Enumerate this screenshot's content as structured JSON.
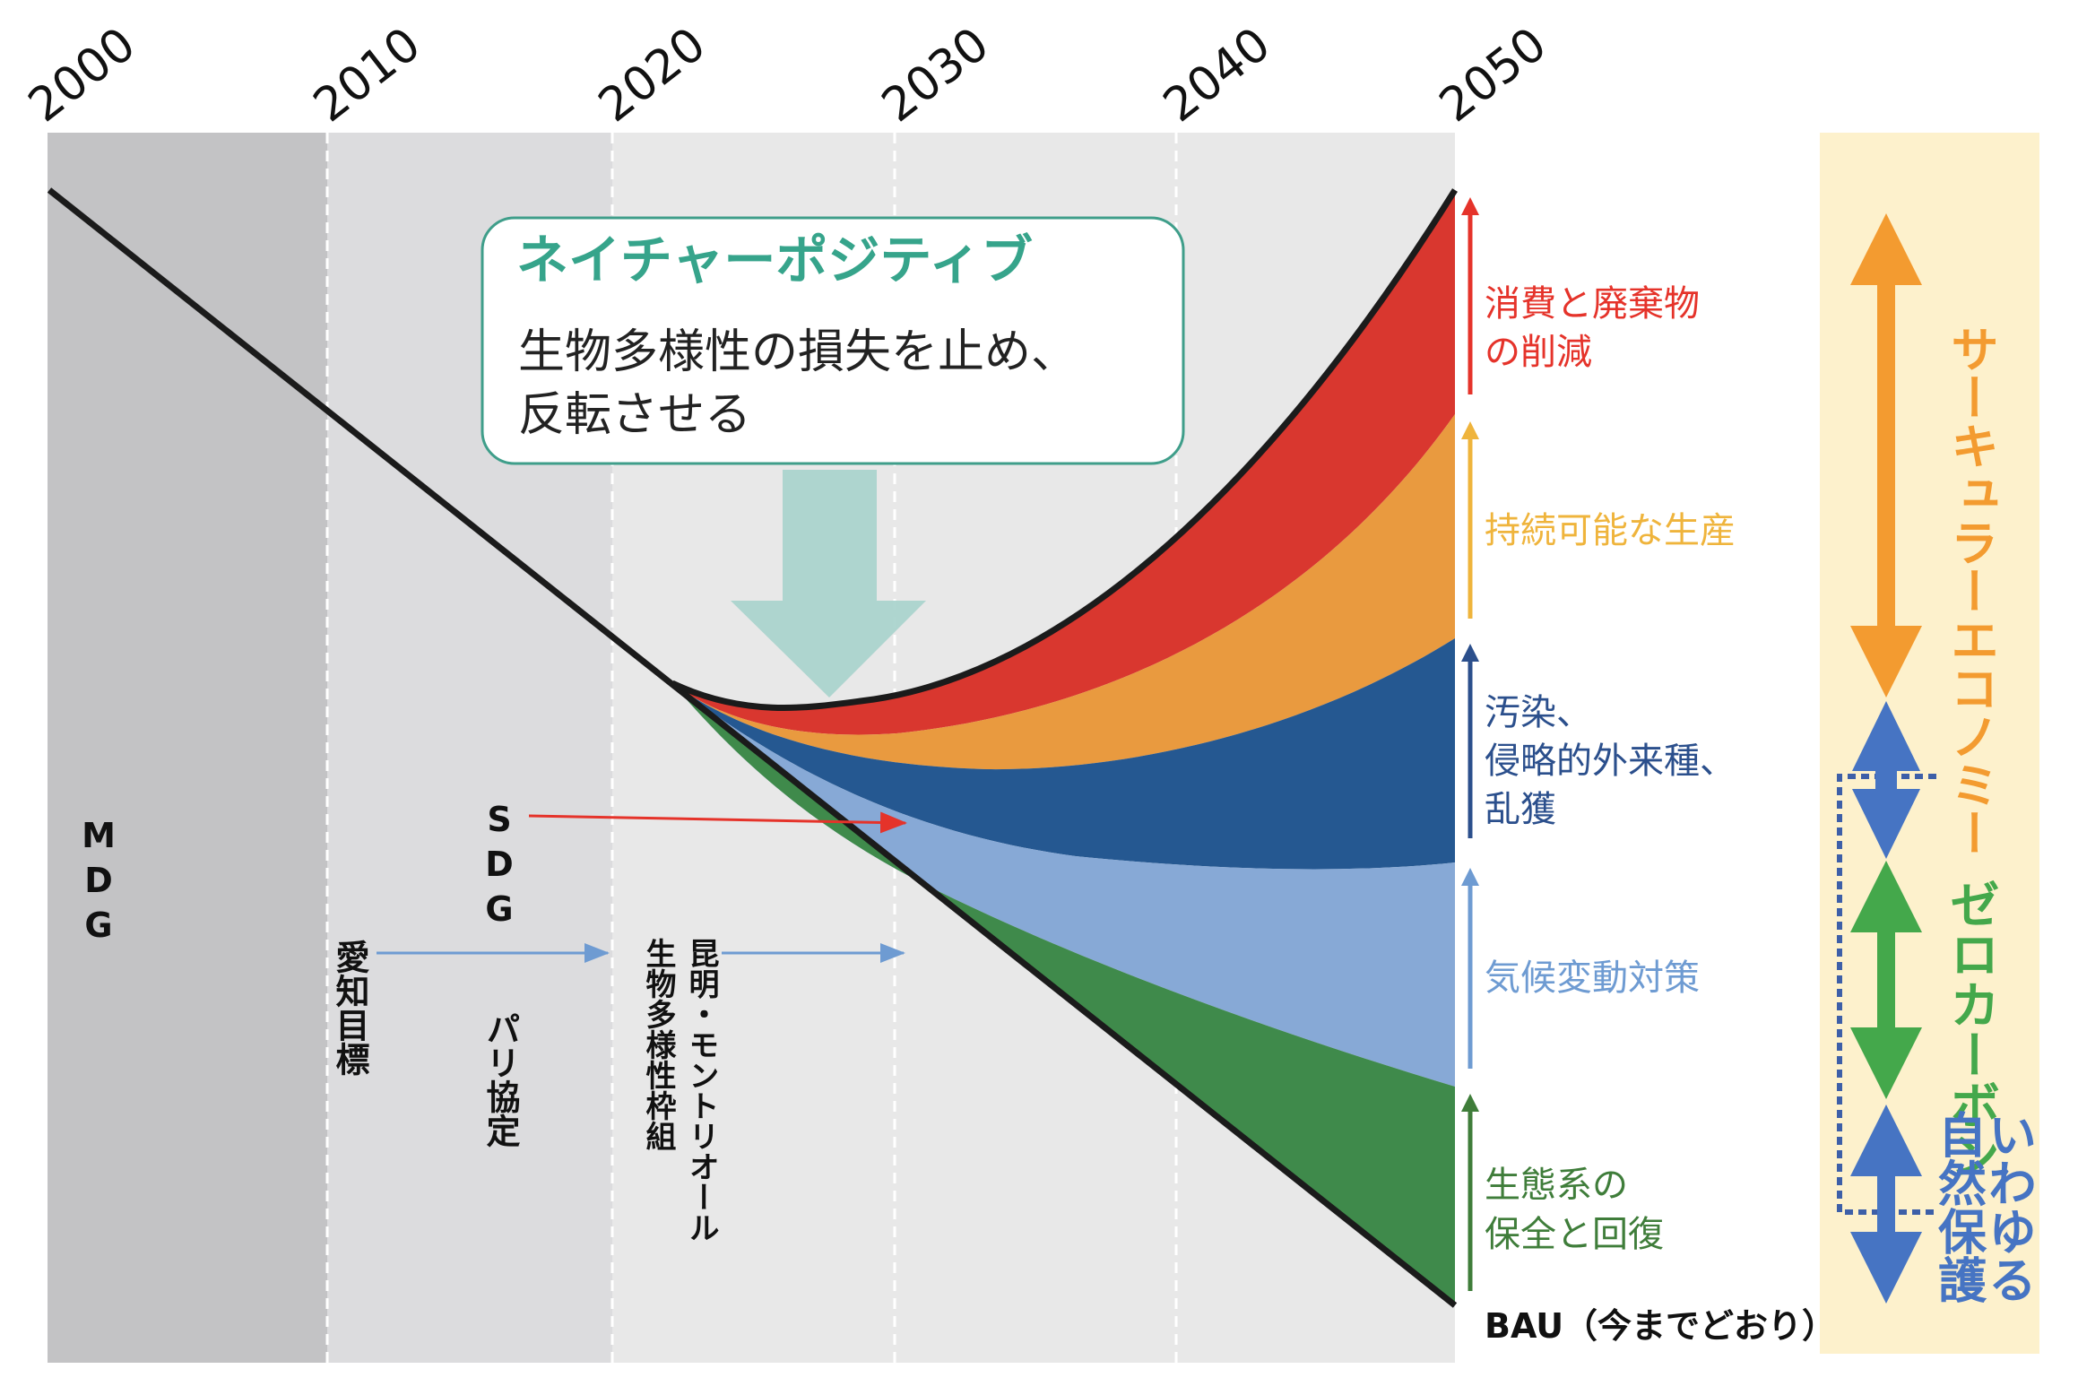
{
  "years": [
    "2000",
    "2010",
    "2020",
    "2030",
    "2040",
    "2050"
  ],
  "callout": {
    "title": "ネイチャーポジティブ",
    "line1": "生物多様性の損失を止め、",
    "line2": "反転させる"
  },
  "left_labels": {
    "mdg": "MDG",
    "sdg": "SDG",
    "aichi": "愛知目標",
    "paris": "パリ協定",
    "kunming_1": "昆明・モントリオール",
    "kunming_2": "生物多様性枠組"
  },
  "bands": [
    {
      "label_1": "消費と廃棄物",
      "label_2": "の削減",
      "color": "#d9372f"
    },
    {
      "label_1": "持続可能な生産",
      "color": "#e99a3f"
    },
    {
      "label_1": "汚染、",
      "label_2": "侵略的外来種、",
      "label_3": "乱獲",
      "color": "#255891"
    },
    {
      "label_1": "気候変動対策",
      "color": "#87a9d6"
    },
    {
      "label_1": "生態系の",
      "label_2": "保全と回復",
      "color": "#3f8a4b"
    }
  ],
  "label_colors": {
    "consumption": "#e5332a",
    "production": "#efb43c",
    "pollution": "#2b4f8c",
    "climate": "#6e9bd2",
    "ecosystem": "#3f7d3a"
  },
  "bau": "BAU（今までどおり）",
  "right_panel": {
    "circular": "サーキュラーエコノミー",
    "zero": "ゼロカーボン",
    "so_called": "いわゆる",
    "nature": "自然保護",
    "colors": {
      "orange": "#f39b30",
      "green": "#44a84b",
      "blue": "#4674c3",
      "bg": "#fdf1cc"
    }
  }
}
